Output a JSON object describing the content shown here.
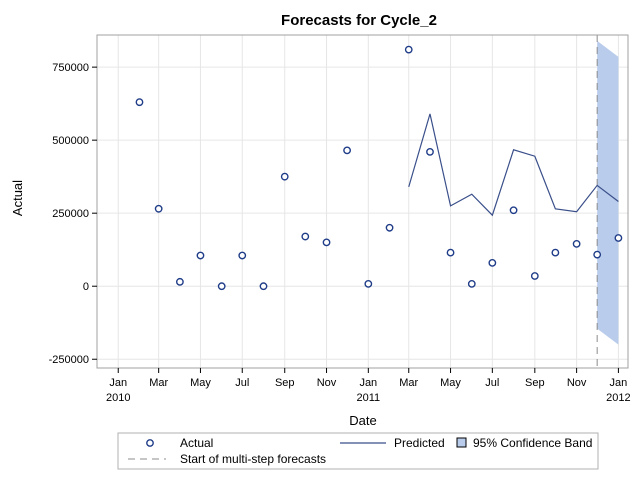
{
  "chart_data": {
    "type": "line",
    "title": "Forecasts for Cycle_2",
    "xlabel": "Date",
    "ylabel": "Actual",
    "ylim": [
      -280000,
      860000
    ],
    "xlim": [
      "2009-12-01",
      "2012-01-15"
    ],
    "y_ticks": [
      {
        "value": -250000,
        "label": "-250000"
      },
      {
        "value": 0,
        "label": "0"
      },
      {
        "value": 250000,
        "label": "250000"
      },
      {
        "value": 500000,
        "label": "500000"
      },
      {
        "value": 750000,
        "label": "750000"
      }
    ],
    "x_ticks": [
      {
        "date": "2010-01-01",
        "label": "Jan",
        "sublabel": "2010"
      },
      {
        "date": "2010-03-01",
        "label": "Mar",
        "sublabel": ""
      },
      {
        "date": "2010-05-01",
        "label": "May",
        "sublabel": ""
      },
      {
        "date": "2010-07-01",
        "label": "Jul",
        "sublabel": ""
      },
      {
        "date": "2010-09-01",
        "label": "Sep",
        "sublabel": ""
      },
      {
        "date": "2010-11-01",
        "label": "Nov",
        "sublabel": ""
      },
      {
        "date": "2011-01-01",
        "label": "Jan",
        "sublabel": "2011"
      },
      {
        "date": "2011-03-01",
        "label": "Mar",
        "sublabel": ""
      },
      {
        "date": "2011-05-01",
        "label": "May",
        "sublabel": ""
      },
      {
        "date": "2011-07-01",
        "label": "Jul",
        "sublabel": ""
      },
      {
        "date": "2011-09-01",
        "label": "Sep",
        "sublabel": ""
      },
      {
        "date": "2011-11-01",
        "label": "Nov",
        "sublabel": ""
      },
      {
        "date": "2012-01-01",
        "label": "Jan",
        "sublabel": "2012"
      }
    ],
    "grid": true,
    "series": [
      {
        "name": "Actual",
        "kind": "markers",
        "points": [
          {
            "x": "2010-02-01",
            "y": 630000
          },
          {
            "x": "2010-03-01",
            "y": 265000
          },
          {
            "x": "2010-04-01",
            "y": 15000
          },
          {
            "x": "2010-05-01",
            "y": 105000
          },
          {
            "x": "2010-06-01",
            "y": 0
          },
          {
            "x": "2010-07-01",
            "y": 105000
          },
          {
            "x": "2010-08-01",
            "y": 0
          },
          {
            "x": "2010-09-01",
            "y": 375000
          },
          {
            "x": "2010-10-01",
            "y": 170000
          },
          {
            "x": "2010-11-01",
            "y": 150000
          },
          {
            "x": "2010-12-01",
            "y": 465000
          },
          {
            "x": "2011-01-01",
            "y": 8000
          },
          {
            "x": "2011-02-01",
            "y": 200000
          },
          {
            "x": "2011-03-01",
            "y": 810000
          },
          {
            "x": "2011-04-01",
            "y": 460000
          },
          {
            "x": "2011-05-01",
            "y": 115000
          },
          {
            "x": "2011-06-01",
            "y": 8000
          },
          {
            "x": "2011-07-01",
            "y": 80000
          },
          {
            "x": "2011-08-01",
            "y": 260000
          },
          {
            "x": "2011-09-01",
            "y": 35000
          },
          {
            "x": "2011-10-01",
            "y": 115000
          },
          {
            "x": "2011-11-01",
            "y": 145000
          },
          {
            "x": "2011-12-01",
            "y": 108000
          },
          {
            "x": "2012-01-01",
            "y": 165000
          }
        ]
      },
      {
        "name": "Predicted",
        "kind": "line",
        "points": [
          {
            "x": "2011-03-01",
            "y": 340000
          },
          {
            "x": "2011-04-01",
            "y": 590000
          },
          {
            "x": "2011-05-01",
            "y": 275000
          },
          {
            "x": "2011-06-01",
            "y": 315000
          },
          {
            "x": "2011-07-01",
            "y": 243000
          },
          {
            "x": "2011-08-01",
            "y": 467000
          },
          {
            "x": "2011-09-01",
            "y": 445000
          },
          {
            "x": "2011-10-01",
            "y": 265000
          },
          {
            "x": "2011-11-01",
            "y": 255000
          },
          {
            "x": "2011-12-01",
            "y": 345000
          },
          {
            "x": "2012-01-01",
            "y": 290000
          }
        ]
      },
      {
        "name": "95% Confidence Band",
        "kind": "band",
        "points": [
          {
            "x": "2011-12-01",
            "lower": -145000,
            "upper": 840000
          },
          {
            "x": "2012-01-01",
            "lower": -200000,
            "upper": 785000
          }
        ]
      },
      {
        "name": "Start of multi-step forecasts",
        "kind": "reference_line",
        "x": "2011-12-01"
      }
    ],
    "legend": {
      "placement": "bottom",
      "items": [
        {
          "label": "Actual",
          "symbol": "circle"
        },
        {
          "label": "Predicted",
          "symbol": "line"
        },
        {
          "label": "95% Confidence Band",
          "symbol": "band"
        },
        {
          "label": "Start of multi-step forecasts",
          "symbol": "dashed-line"
        }
      ]
    },
    "colors": {
      "marker": "#1f3c88",
      "line": "#3a4f8a",
      "band_fill": "#b9cceb",
      "reference": "#8c8c8c",
      "grid": "#e6e6e6",
      "frame": "#a0a0a0"
    }
  }
}
